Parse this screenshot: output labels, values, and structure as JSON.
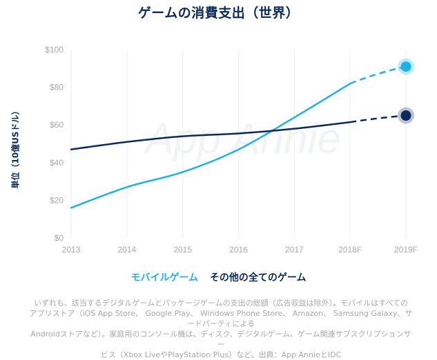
{
  "colors": {
    "title": "#0b2a5c",
    "mobile": "#1cb4e6",
    "other": "#0b2a5c",
    "grid": "#eeeeee",
    "tick": "#a8a8a8",
    "watermark": "#f1f3f6"
  },
  "watermark": "App Annie",
  "footnote": {
    "line1": "いずれも、該当するデジタルゲームとパッケージゲームの支出の総額（広告収益は除外）。モバイルはすべての",
    "line2": "アプリストア（iOS App Store、 Google Play、 Windows Phone Store、 Amazon、 Samsung Galaxy、サードパーティによる",
    "line3": "Androidストアなど）。家庭用のコンソール機は、ディスク、デジタルゲーム、ゲーム関連サブスクリプションサー",
    "line4": "ビス（Xbox LiveやPlayStation Plus）など。出典：App AnnieとIDC"
  },
  "chart_data": {
    "type": "line",
    "title": "ゲームの消費支出（世界）",
    "xlabel": "",
    "ylabel": "単位（10億USドル）",
    "categories": [
      "2013",
      "2014",
      "2015",
      "2016",
      "2017",
      "2018F",
      "2019F"
    ],
    "yticks": [
      "$0",
      "$20",
      "$40",
      "$60",
      "$80",
      "$100"
    ],
    "ytick_values": [
      0,
      20,
      40,
      60,
      80,
      100
    ],
    "ylim": [
      0,
      100
    ],
    "grid": "vertical",
    "legend_position": "bottom",
    "forecast_from_index": 5,
    "series": [
      {
        "name": "モバイルゲーム",
        "color": "#1cb4e6",
        "values": [
          16,
          27,
          35,
          47,
          64,
          82,
          91
        ]
      },
      {
        "name": "その他の全てのゲーム",
        "color": "#0b2a5c",
        "values": [
          47,
          51,
          54,
          55.5,
          58,
          61.5,
          65
        ]
      }
    ]
  }
}
